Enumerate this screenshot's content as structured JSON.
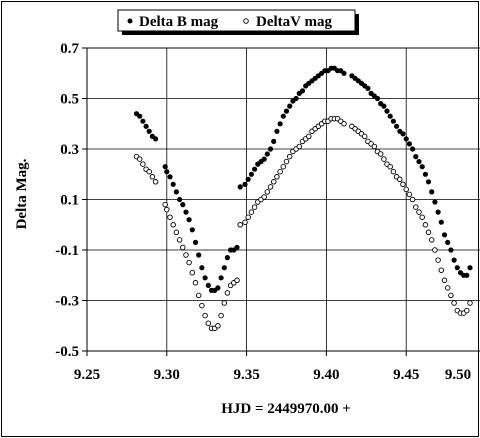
{
  "chart_data": {
    "type": "scatter",
    "title": "",
    "xlabel": "HJD = 2449970.00 +",
    "ylabel": "Delta Mag.",
    "xlim": [
      9.25,
      9.5
    ],
    "ylim": [
      -0.5,
      0.7
    ],
    "x_ticks": [
      "9.25",
      "9.30",
      "9.35",
      "9.40",
      "9.45",
      "9.50"
    ],
    "y_ticks": [
      "0.7",
      "0.5",
      "0.3",
      "0.1",
      "-0.1",
      "-0.3",
      "-0.5"
    ],
    "grid": true,
    "legend_position": "top-center",
    "series": [
      {
        "name": "Delta B mag",
        "marker": "filled-circle",
        "color": "#000000",
        "x": [
          9.281,
          9.283,
          9.285,
          9.287,
          9.289,
          9.291,
          9.293,
          9.299,
          9.3,
          9.302,
          9.304,
          9.306,
          9.308,
          9.31,
          9.312,
          9.314,
          9.316,
          9.318,
          9.32,
          9.322,
          9.324,
          9.326,
          9.328,
          9.33,
          9.332,
          9.334,
          9.336,
          9.338,
          9.34,
          9.342,
          9.344,
          9.346,
          9.349,
          9.351,
          9.353,
          9.355,
          9.357,
          9.359,
          9.361,
          9.363,
          9.365,
          9.367,
          9.369,
          9.371,
          9.373,
          9.375,
          9.377,
          9.379,
          9.381,
          9.383,
          9.385,
          9.387,
          9.389,
          9.391,
          9.393,
          9.395,
          9.397,
          9.399,
          9.401,
          9.403,
          9.405,
          9.407,
          9.409,
          9.411,
          9.416,
          9.418,
          9.42,
          9.422,
          9.424,
          9.426,
          9.428,
          9.43,
          9.432,
          9.434,
          9.436,
          9.438,
          9.44,
          9.442,
          9.444,
          9.446,
          9.448,
          9.45,
          9.452,
          9.454,
          9.456,
          9.458,
          9.46,
          9.462,
          9.464,
          9.466,
          9.468,
          9.47,
          9.472,
          9.474,
          9.476,
          9.478,
          9.48,
          9.482,
          9.484,
          9.486,
          9.488,
          9.49
        ],
        "y": [
          0.44,
          0.43,
          0.41,
          0.39,
          0.37,
          0.35,
          0.34,
          0.23,
          0.21,
          0.19,
          0.16,
          0.13,
          0.1,
          0.08,
          0.05,
          0.02,
          -0.02,
          -0.07,
          -0.12,
          -0.17,
          -0.21,
          -0.24,
          -0.26,
          -0.26,
          -0.25,
          -0.21,
          -0.17,
          -0.13,
          -0.1,
          -0.1,
          -0.09,
          0.15,
          0.16,
          0.18,
          0.2,
          0.22,
          0.24,
          0.25,
          0.26,
          0.28,
          0.3,
          0.33,
          0.37,
          0.4,
          0.43,
          0.45,
          0.47,
          0.49,
          0.5,
          0.52,
          0.53,
          0.55,
          0.56,
          0.57,
          0.58,
          0.59,
          0.6,
          0.61,
          0.61,
          0.62,
          0.62,
          0.61,
          0.61,
          0.6,
          0.59,
          0.58,
          0.57,
          0.56,
          0.55,
          0.54,
          0.52,
          0.51,
          0.5,
          0.48,
          0.47,
          0.45,
          0.43,
          0.41,
          0.39,
          0.37,
          0.36,
          0.34,
          0.32,
          0.3,
          0.27,
          0.25,
          0.23,
          0.2,
          0.17,
          0.13,
          0.09,
          0.05,
          0.01,
          -0.04,
          -0.07,
          -0.1,
          -0.14,
          -0.17,
          -0.19,
          -0.2,
          -0.2,
          -0.17
        ]
      },
      {
        "name": "DeltaV mag",
        "marker": "open-circle",
        "color": "#000000",
        "x": [
          9.281,
          9.283,
          9.285,
          9.287,
          9.289,
          9.291,
          9.293,
          9.299,
          9.3,
          9.302,
          9.304,
          9.306,
          9.308,
          9.31,
          9.312,
          9.314,
          9.316,
          9.318,
          9.32,
          9.322,
          9.324,
          9.326,
          9.328,
          9.33,
          9.332,
          9.334,
          9.336,
          9.338,
          9.34,
          9.342,
          9.344,
          9.346,
          9.349,
          9.351,
          9.353,
          9.355,
          9.357,
          9.359,
          9.361,
          9.363,
          9.365,
          9.367,
          9.369,
          9.371,
          9.373,
          9.375,
          9.377,
          9.379,
          9.381,
          9.383,
          9.385,
          9.387,
          9.389,
          9.391,
          9.393,
          9.395,
          9.397,
          9.399,
          9.401,
          9.403,
          9.405,
          9.407,
          9.409,
          9.411,
          9.416,
          9.418,
          9.42,
          9.422,
          9.424,
          9.426,
          9.428,
          9.43,
          9.432,
          9.434,
          9.436,
          9.438,
          9.44,
          9.442,
          9.444,
          9.446,
          9.448,
          9.45,
          9.452,
          9.454,
          9.456,
          9.458,
          9.46,
          9.462,
          9.464,
          9.466,
          9.468,
          9.47,
          9.472,
          9.474,
          9.476,
          9.478,
          9.48,
          9.482,
          9.484,
          9.486,
          9.488,
          9.49
        ],
        "y": [
          0.27,
          0.26,
          0.24,
          0.22,
          0.21,
          0.19,
          0.17,
          0.08,
          0.06,
          0.03,
          0.0,
          -0.03,
          -0.06,
          -0.09,
          -0.12,
          -0.15,
          -0.19,
          -0.23,
          -0.28,
          -0.32,
          -0.36,
          -0.39,
          -0.41,
          -0.41,
          -0.4,
          -0.36,
          -0.31,
          -0.27,
          -0.24,
          -0.23,
          -0.22,
          0.0,
          0.01,
          0.03,
          0.05,
          0.07,
          0.09,
          0.1,
          0.11,
          0.13,
          0.15,
          0.17,
          0.19,
          0.21,
          0.23,
          0.25,
          0.27,
          0.29,
          0.3,
          0.31,
          0.33,
          0.34,
          0.35,
          0.37,
          0.38,
          0.39,
          0.4,
          0.41,
          0.41,
          0.42,
          0.42,
          0.42,
          0.41,
          0.4,
          0.39,
          0.38,
          0.37,
          0.36,
          0.35,
          0.33,
          0.32,
          0.31,
          0.29,
          0.28,
          0.26,
          0.24,
          0.23,
          0.21,
          0.19,
          0.18,
          0.16,
          0.14,
          0.12,
          0.1,
          0.07,
          0.05,
          0.03,
          0.0,
          -0.03,
          -0.06,
          -0.1,
          -0.14,
          -0.18,
          -0.22,
          -0.25,
          -0.28,
          -0.31,
          -0.34,
          -0.35,
          -0.35,
          -0.34,
          -0.31
        ]
      }
    ]
  }
}
